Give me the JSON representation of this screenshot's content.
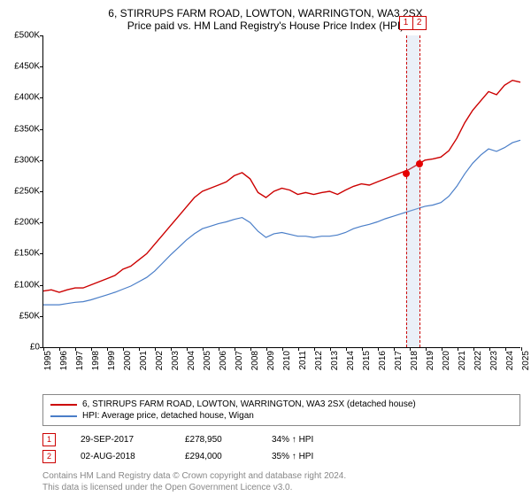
{
  "title": "6, STIRRUPS FARM ROAD, LOWTON, WARRINGTON, WA3 2SX",
  "subtitle": "Price paid vs. HM Land Registry's House Price Index (HPI)",
  "chart": {
    "type": "line",
    "xlim": [
      1995,
      2025
    ],
    "ylim": [
      0,
      500000
    ],
    "ytick_step": 50000,
    "yticks": [
      "£0",
      "£50K",
      "£100K",
      "£150K",
      "£200K",
      "£250K",
      "£300K",
      "£350K",
      "£400K",
      "£450K",
      "£500K"
    ],
    "xticks": [
      1995,
      1996,
      1997,
      1998,
      1999,
      2000,
      2001,
      2002,
      2003,
      2004,
      2005,
      2006,
      2007,
      2008,
      2009,
      2010,
      2011,
      2012,
      2013,
      2014,
      2015,
      2016,
      2017,
      2018,
      2019,
      2020,
      2021,
      2022,
      2023,
      2024,
      2025
    ],
    "background_color": "#ffffff",
    "axis_color": "#000000",
    "font_size_labels": 10,
    "series": [
      {
        "name": "price_paid",
        "label": "6, STIRRUPS FARM ROAD, LOWTON, WARRINGTON, WA3 2SX (detached house)",
        "color": "#cc0000",
        "line_width": 1.4,
        "data": [
          [
            1995,
            90000
          ],
          [
            1995.5,
            92000
          ],
          [
            1996,
            88000
          ],
          [
            1996.5,
            92000
          ],
          [
            1997,
            95000
          ],
          [
            1997.5,
            95000
          ],
          [
            1998,
            100000
          ],
          [
            1998.5,
            105000
          ],
          [
            1999,
            110000
          ],
          [
            1999.5,
            115000
          ],
          [
            2000,
            125000
          ],
          [
            2000.5,
            130000
          ],
          [
            2001,
            140000
          ],
          [
            2001.5,
            150000
          ],
          [
            2002,
            165000
          ],
          [
            2002.5,
            180000
          ],
          [
            2003,
            195000
          ],
          [
            2003.5,
            210000
          ],
          [
            2004,
            225000
          ],
          [
            2004.5,
            240000
          ],
          [
            2005,
            250000
          ],
          [
            2005.5,
            255000
          ],
          [
            2006,
            260000
          ],
          [
            2006.5,
            265000
          ],
          [
            2007,
            275000
          ],
          [
            2007.5,
            280000
          ],
          [
            2008,
            270000
          ],
          [
            2008.5,
            248000
          ],
          [
            2009,
            240000
          ],
          [
            2009.5,
            250000
          ],
          [
            2010,
            255000
          ],
          [
            2010.5,
            252000
          ],
          [
            2011,
            245000
          ],
          [
            2011.5,
            248000
          ],
          [
            2012,
            245000
          ],
          [
            2012.5,
            248000
          ],
          [
            2013,
            250000
          ],
          [
            2013.5,
            245000
          ],
          [
            2014,
            252000
          ],
          [
            2014.5,
            258000
          ],
          [
            2015,
            262000
          ],
          [
            2015.5,
            260000
          ],
          [
            2016,
            265000
          ],
          [
            2016.5,
            270000
          ],
          [
            2017,
            275000
          ],
          [
            2017.5,
            280000
          ],
          [
            2018,
            285000
          ],
          [
            2018.6,
            294000
          ],
          [
            2019,
            300000
          ],
          [
            2019.5,
            302000
          ],
          [
            2020,
            305000
          ],
          [
            2020.5,
            315000
          ],
          [
            2021,
            335000
          ],
          [
            2021.5,
            360000
          ],
          [
            2022,
            380000
          ],
          [
            2022.5,
            395000
          ],
          [
            2023,
            410000
          ],
          [
            2023.5,
            405000
          ],
          [
            2024,
            420000
          ],
          [
            2024.5,
            428000
          ],
          [
            2025,
            425000
          ]
        ]
      },
      {
        "name": "hpi",
        "label": "HPI: Average price, detached house, Wigan",
        "color": "#4a7ec8",
        "line_width": 1.2,
        "data": [
          [
            1995,
            68000
          ],
          [
            1995.5,
            68000
          ],
          [
            1996,
            68000
          ],
          [
            1996.5,
            70000
          ],
          [
            1997,
            72000
          ],
          [
            1997.5,
            73000
          ],
          [
            1998,
            76000
          ],
          [
            1998.5,
            80000
          ],
          [
            1999,
            84000
          ],
          [
            1999.5,
            88000
          ],
          [
            2000,
            93000
          ],
          [
            2000.5,
            98000
          ],
          [
            2001,
            105000
          ],
          [
            2001.5,
            112000
          ],
          [
            2002,
            122000
          ],
          [
            2002.5,
            135000
          ],
          [
            2003,
            148000
          ],
          [
            2003.5,
            160000
          ],
          [
            2004,
            172000
          ],
          [
            2004.5,
            182000
          ],
          [
            2005,
            190000
          ],
          [
            2005.5,
            194000
          ],
          [
            2006,
            198000
          ],
          [
            2006.5,
            201000
          ],
          [
            2007,
            205000
          ],
          [
            2007.5,
            208000
          ],
          [
            2008,
            200000
          ],
          [
            2008.5,
            186000
          ],
          [
            2009,
            176000
          ],
          [
            2009.5,
            182000
          ],
          [
            2010,
            184000
          ],
          [
            2010.5,
            181000
          ],
          [
            2011,
            178000
          ],
          [
            2011.5,
            178000
          ],
          [
            2012,
            176000
          ],
          [
            2012.5,
            178000
          ],
          [
            2013,
            178000
          ],
          [
            2013.5,
            180000
          ],
          [
            2014,
            184000
          ],
          [
            2014.5,
            190000
          ],
          [
            2015,
            194000
          ],
          [
            2015.5,
            197000
          ],
          [
            2016,
            201000
          ],
          [
            2016.5,
            206000
          ],
          [
            2017,
            210000
          ],
          [
            2017.5,
            214000
          ],
          [
            2018,
            218000
          ],
          [
            2018.5,
            222000
          ],
          [
            2019,
            226000
          ],
          [
            2019.5,
            228000
          ],
          [
            2020,
            232000
          ],
          [
            2020.5,
            242000
          ],
          [
            2021,
            258000
          ],
          [
            2021.5,
            278000
          ],
          [
            2022,
            295000
          ],
          [
            2022.5,
            308000
          ],
          [
            2023,
            318000
          ],
          [
            2023.5,
            314000
          ],
          [
            2024,
            320000
          ],
          [
            2024.5,
            328000
          ],
          [
            2025,
            332000
          ]
        ]
      }
    ],
    "sales": [
      {
        "idx": "1",
        "date": "29-SEP-2017",
        "x": 2017.75,
        "price": 278950,
        "price_label": "£278,950",
        "pct": "34% ↑ HPI"
      },
      {
        "idx": "2",
        "date": "02-AUG-2018",
        "x": 2018.59,
        "price": 294000,
        "price_label": "£294,000",
        "pct": "35% ↑ HPI"
      }
    ],
    "shade_color": "#b6c9e6",
    "vline_color": "#cc0000",
    "marker_color": "#e60000"
  },
  "footer1": "Contains HM Land Registry data © Crown copyright and database right 2024.",
  "footer2": "This data is licensed under the Open Government Licence v3.0."
}
